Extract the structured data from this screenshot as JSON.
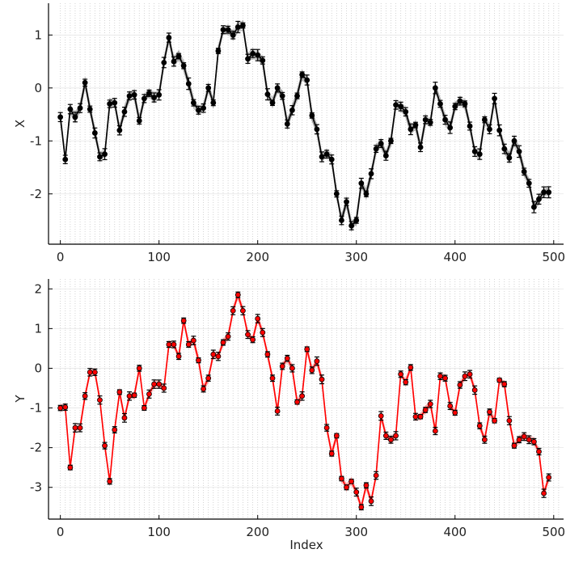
{
  "chart_data": [
    {
      "type": "line",
      "ylabel": "X",
      "xlabel": "",
      "xlim": [
        -12,
        510
      ],
      "ylim": [
        -2.95,
        1.6
      ],
      "xticks": [
        0,
        100,
        200,
        300,
        400,
        500
      ],
      "yticks": [
        -2,
        -1,
        0,
        1
      ],
      "grid": true,
      "line_color": "#000000",
      "band_color": "#9a9a9a",
      "series": [
        {
          "x": [
            0,
            5,
            10,
            15,
            20,
            25,
            30,
            35,
            40,
            45,
            50,
            55,
            60,
            65,
            70,
            75,
            80,
            85,
            90,
            95,
            100,
            105,
            110,
            115,
            120,
            125,
            130,
            135,
            140,
            145,
            150,
            155,
            160,
            165,
            170,
            175,
            180,
            185,
            190,
            195,
            200,
            205,
            210,
            215,
            220,
            225,
            230,
            235,
            240,
            245,
            250,
            255,
            260,
            265,
            270,
            275,
            280,
            285,
            290,
            295,
            300,
            305,
            310,
            315,
            320,
            325,
            330,
            335,
            340,
            345,
            350,
            355,
            360,
            365,
            370,
            375,
            380,
            385,
            390,
            395,
            400,
            405,
            410,
            415,
            420,
            425,
            430,
            435,
            440,
            445,
            450,
            455,
            460,
            465,
            470,
            475,
            480,
            485,
            490,
            495
          ],
          "y": [
            -0.55,
            -1.35,
            -0.4,
            -0.55,
            -0.38,
            0.1,
            -0.4,
            -0.85,
            -1.3,
            -1.25,
            -0.3,
            -0.28,
            -0.8,
            -0.45,
            -0.15,
            -0.13,
            -0.62,
            -0.2,
            -0.1,
            -0.18,
            -0.13,
            0.48,
            0.95,
            0.5,
            0.6,
            0.42,
            0.08,
            -0.28,
            -0.42,
            -0.38,
            0.0,
            -0.28,
            0.7,
            1.1,
            1.1,
            1.0,
            1.15,
            1.18,
            0.55,
            0.65,
            0.62,
            0.52,
            -0.12,
            -0.28,
            0.0,
            -0.15,
            -0.68,
            -0.42,
            -0.15,
            0.25,
            0.15,
            -0.52,
            -0.78,
            -1.3,
            -1.25,
            -1.35,
            -2.0,
            -2.5,
            -2.15,
            -2.6,
            -2.5,
            -1.8,
            -2.0,
            -1.62,
            -1.15,
            -1.05,
            -1.28,
            -1.0,
            -0.32,
            -0.35,
            -0.45,
            -0.78,
            -0.7,
            -1.12,
            -0.6,
            -0.65,
            0.0,
            -0.3,
            -0.6,
            -0.75,
            -0.35,
            -0.25,
            -0.3,
            -0.72,
            -1.2,
            -1.25,
            -0.6,
            -0.78,
            -0.2,
            -0.8,
            -1.15,
            -1.32,
            -1.0,
            -1.2,
            -1.58,
            -1.8,
            -2.25,
            -2.1,
            -1.97,
            -1.97
          ]
        }
      ]
    },
    {
      "type": "line",
      "ylabel": "Y",
      "xlabel": "Index",
      "xlim": [
        -12,
        510
      ],
      "ylim": [
        -3.8,
        2.25
      ],
      "xticks": [
        0,
        100,
        200,
        300,
        400,
        500
      ],
      "yticks": [
        -3,
        -2,
        -1,
        0,
        1,
        2
      ],
      "grid": true,
      "line_color": "#ff0000",
      "band_color": "#ff9a9a",
      "series": [
        {
          "x": [
            0,
            5,
            10,
            15,
            20,
            25,
            30,
            35,
            40,
            45,
            50,
            55,
            60,
            65,
            70,
            75,
            80,
            85,
            90,
            95,
            100,
            105,
            110,
            115,
            120,
            125,
            130,
            135,
            140,
            145,
            150,
            155,
            160,
            165,
            170,
            175,
            180,
            185,
            190,
            195,
            200,
            205,
            210,
            215,
            220,
            225,
            230,
            235,
            240,
            245,
            250,
            255,
            260,
            265,
            270,
            275,
            280,
            285,
            290,
            295,
            300,
            305,
            310,
            315,
            320,
            325,
            330,
            335,
            340,
            345,
            350,
            355,
            360,
            365,
            370,
            375,
            380,
            385,
            390,
            395,
            400,
            405,
            410,
            415,
            420,
            425,
            430,
            435,
            440,
            445,
            450,
            455,
            460,
            465,
            470,
            475,
            480,
            485,
            490,
            495
          ],
          "y": [
            -1.0,
            -0.98,
            -2.5,
            -1.5,
            -1.5,
            -0.7,
            -0.1,
            -0.1,
            -0.8,
            -1.95,
            -2.85,
            -1.55,
            -0.6,
            -1.25,
            -0.7,
            -0.68,
            0.0,
            -1.0,
            -0.65,
            -0.4,
            -0.4,
            -0.5,
            0.6,
            0.6,
            0.3,
            1.2,
            0.6,
            0.7,
            0.2,
            -0.52,
            -0.25,
            0.35,
            0.3,
            0.65,
            0.8,
            1.45,
            1.85,
            1.45,
            0.85,
            0.72,
            1.25,
            0.9,
            0.35,
            -0.25,
            -1.08,
            0.05,
            0.25,
            0.0,
            -0.85,
            -0.7,
            0.48,
            -0.05,
            0.18,
            -0.28,
            -1.5,
            -2.15,
            -1.7,
            -2.78,
            -3.0,
            -2.85,
            -3.12,
            -3.5,
            -2.95,
            -3.35,
            -2.7,
            -1.2,
            -1.7,
            -1.8,
            -1.7,
            -0.15,
            -0.35,
            0.02,
            -1.22,
            -1.22,
            -1.05,
            -0.9,
            -1.58,
            -0.2,
            -0.25,
            -0.95,
            -1.12,
            -0.42,
            -0.2,
            -0.15,
            -0.55,
            -1.45,
            -1.8,
            -1.1,
            -1.32,
            -0.3,
            -0.4,
            -1.32,
            -1.95,
            -1.8,
            -1.72,
            -1.8,
            -1.85,
            -2.1,
            -3.15,
            -2.75
          ]
        }
      ]
    }
  ]
}
